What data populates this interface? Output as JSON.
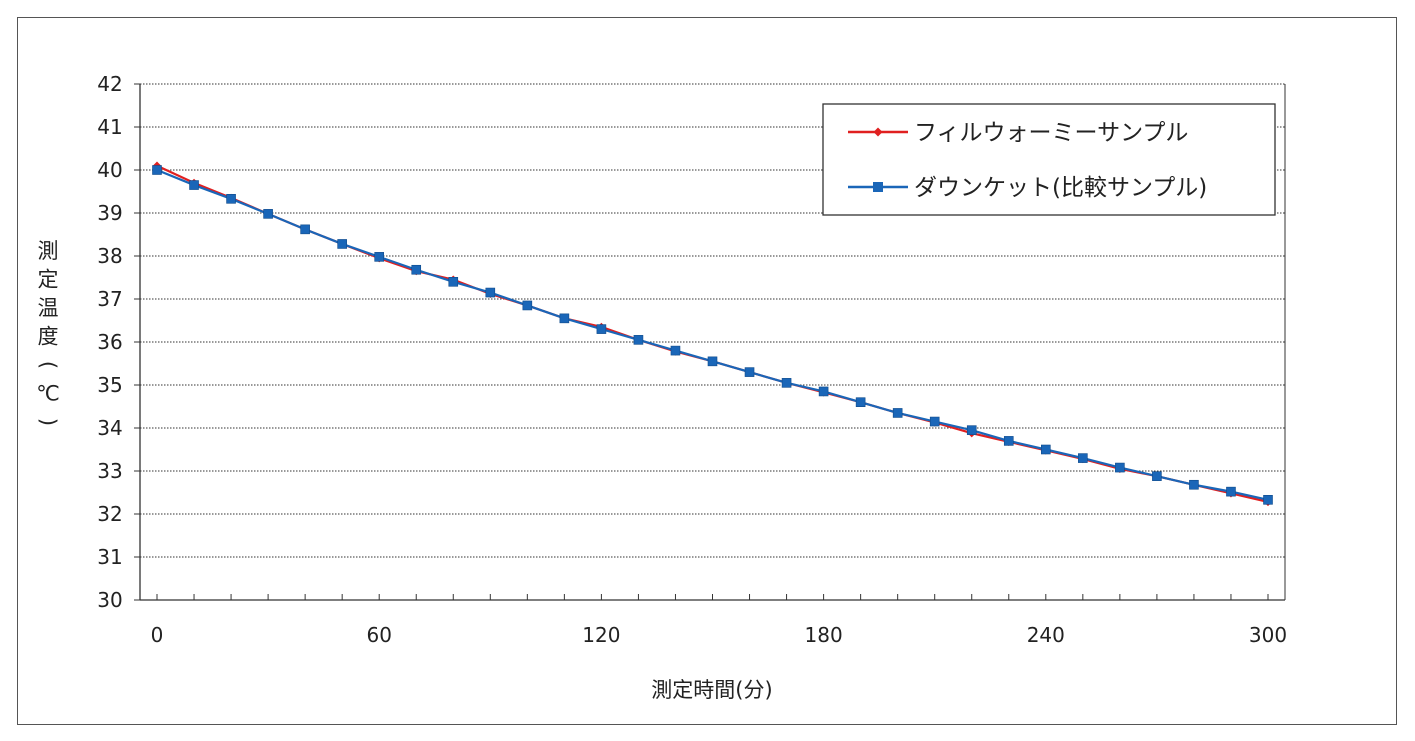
{
  "chart_data": {
    "type": "line",
    "title": "",
    "xlabel": "測定時間(分)",
    "ylabel": "測定温度(℃)",
    "xlim": [
      0,
      300
    ],
    "ylim": [
      30,
      42
    ],
    "xticks": [
      0,
      60,
      120,
      180,
      240,
      300
    ],
    "xticks_labels": [
      "0",
      "60",
      "120",
      "180",
      "240",
      "300"
    ],
    "yticks": [
      30,
      31,
      32,
      33,
      34,
      35,
      36,
      37,
      38,
      39,
      40,
      41,
      42
    ],
    "yticks_labels": [
      "30",
      "31",
      "32",
      "33",
      "34",
      "35",
      "36",
      "37",
      "38",
      "39",
      "40",
      "41",
      "42"
    ],
    "grid": "horizontal",
    "legend_position": "top-right",
    "x": [
      0,
      10,
      20,
      30,
      40,
      50,
      60,
      70,
      80,
      90,
      100,
      110,
      120,
      130,
      140,
      150,
      160,
      170,
      180,
      190,
      200,
      210,
      220,
      230,
      240,
      250,
      260,
      270,
      280,
      290,
      300
    ],
    "series": [
      {
        "name": "フィルウォーミーサンプル",
        "color": "#e02020",
        "marker": "diamond",
        "values": [
          40.1,
          39.7,
          39.35,
          38.98,
          38.62,
          38.28,
          37.95,
          37.65,
          37.45,
          37.12,
          36.85,
          36.55,
          36.35,
          36.05,
          35.78,
          35.55,
          35.3,
          35.05,
          34.83,
          34.6,
          34.35,
          34.13,
          33.88,
          33.68,
          33.48,
          33.28,
          33.05,
          32.88,
          32.68,
          32.48,
          32.28
        ]
      },
      {
        "name": "ダウンケット(比較サンプル)",
        "color": "#1a66b8",
        "marker": "square",
        "values": [
          40.0,
          39.65,
          39.33,
          38.98,
          38.62,
          38.28,
          37.98,
          37.68,
          37.4,
          37.15,
          36.85,
          36.55,
          36.3,
          36.05,
          35.8,
          35.55,
          35.3,
          35.05,
          34.85,
          34.6,
          34.35,
          34.15,
          33.95,
          33.7,
          33.5,
          33.3,
          33.08,
          32.88,
          32.68,
          32.52,
          32.33
        ]
      }
    ]
  }
}
